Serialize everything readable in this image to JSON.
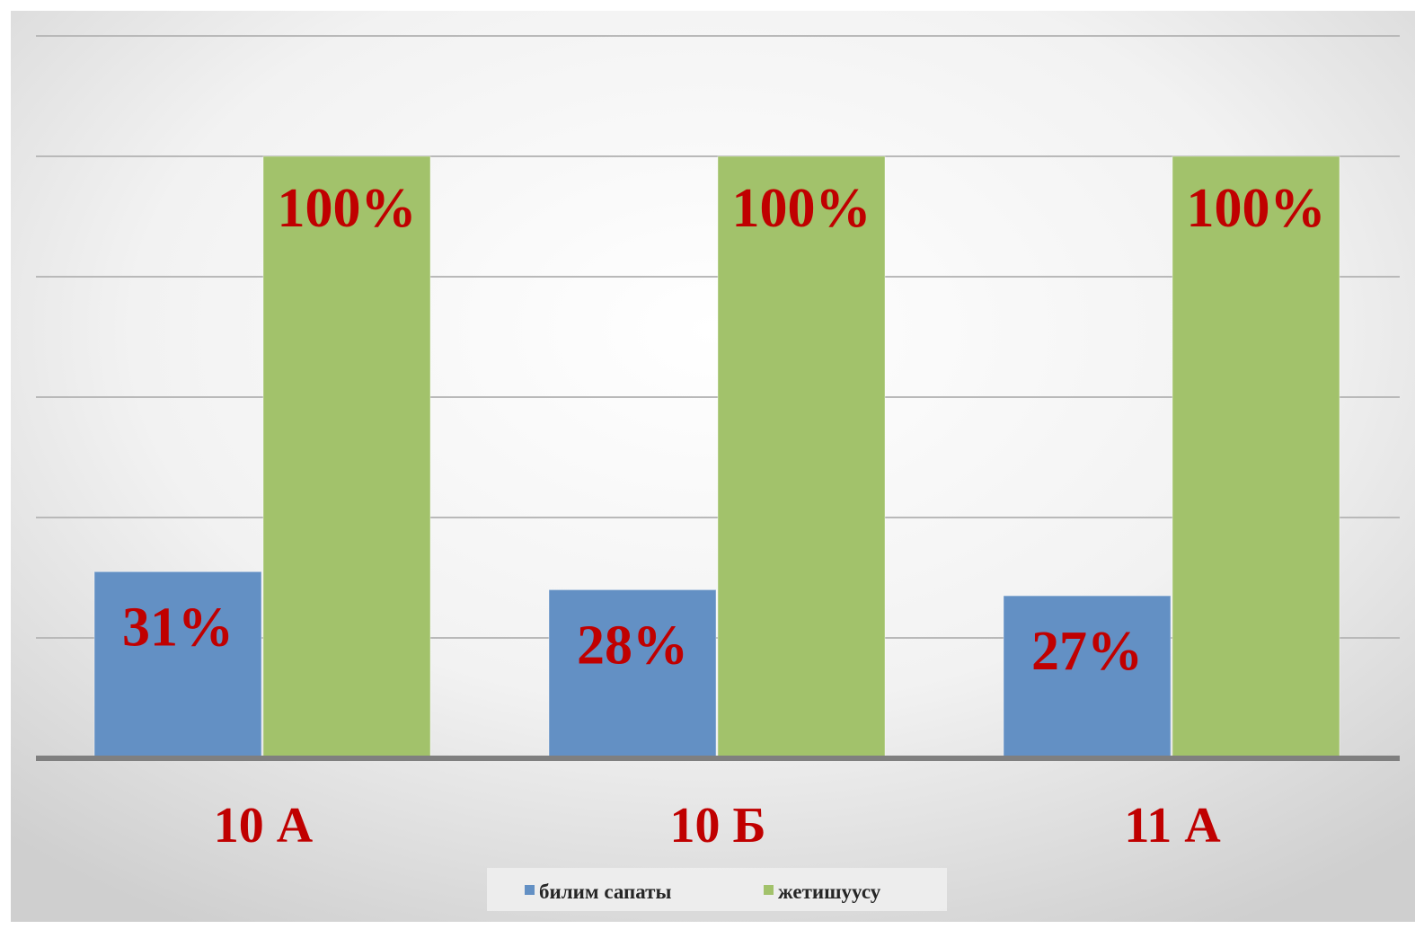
{
  "chart_data": {
    "type": "bar",
    "categories": [
      "10 А",
      "10 Б",
      "11 А"
    ],
    "series": [
      {
        "name": "билим сапаты",
        "values": [
          31,
          28,
          27
        ],
        "labels": [
          "31%",
          "28%",
          "27%"
        ],
        "color": "#6390c4"
      },
      {
        "name": "жетишуусу",
        "values": [
          100,
          100,
          100
        ],
        "labels": [
          "100%",
          "100%",
          "100%"
        ],
        "color": "#a2c26b"
      }
    ],
    "ylim": [
      0,
      100
    ],
    "gridlines": [
      0,
      20,
      40,
      60,
      80,
      100,
      120
    ],
    "grid": true,
    "legend": "bottom-center",
    "title": "",
    "xlabel": "",
    "ylabel": ""
  },
  "colors": {
    "label_text": "#c00000",
    "tick_text": "#c00000",
    "legend_text": "#262626",
    "grid": "#b9b9b9",
    "axis": "#7f7f7f"
  }
}
